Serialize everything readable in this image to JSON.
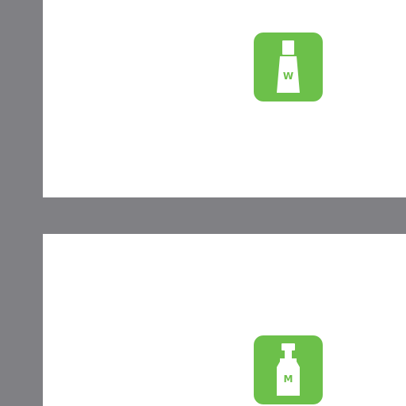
{
  "colors": {
    "bar": "#808084",
    "badge": "#6cc04a",
    "glyph": "#ffffff",
    "label": "#6cc04a",
    "background": "#ffffff"
  },
  "badges": [
    {
      "icon": "tube-bottle-icon",
      "label": "W"
    },
    {
      "icon": "cologne-bottle-icon",
      "label": "M"
    }
  ]
}
